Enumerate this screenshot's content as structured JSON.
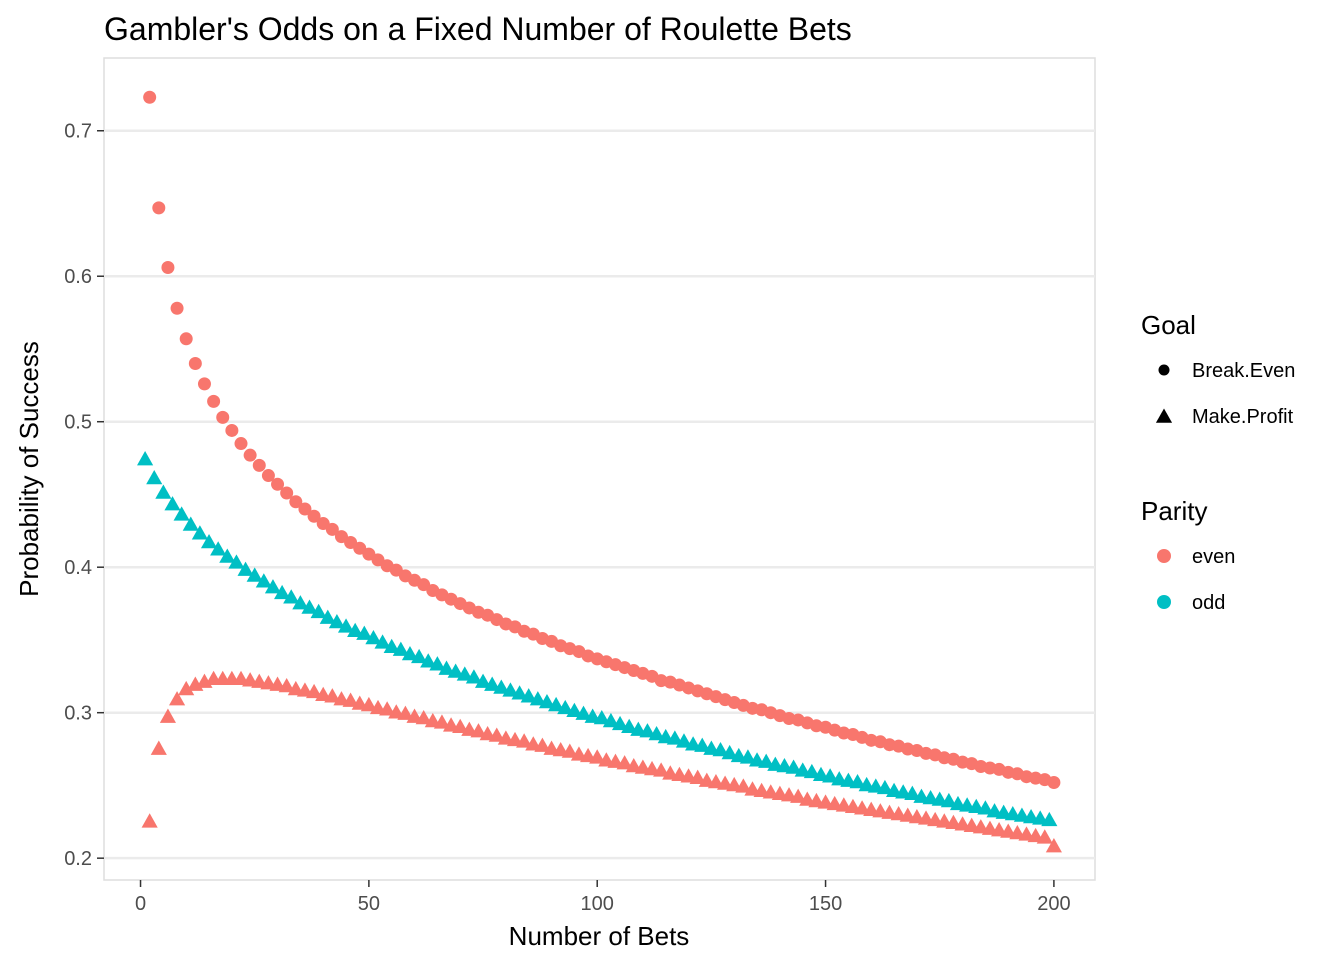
{
  "chart_data": {
    "type": "scatter",
    "title": "Gambler's Odds on a Fixed Number of Roulette Bets",
    "xlabel": "Number of Bets",
    "ylabel": "Probability of Success",
    "xlim": [
      -8,
      209
    ],
    "ylim": [
      0.185,
      0.75
    ],
    "x_ticks": [
      0,
      50,
      100,
      150,
      200
    ],
    "x_tick_labels": [
      "0",
      "50",
      "100",
      "150",
      "200"
    ],
    "y_ticks": [
      0.2,
      0.3,
      0.4,
      0.5,
      0.6,
      0.7
    ],
    "y_tick_labels": [
      "0.2",
      "0.3",
      "0.4",
      "0.5",
      "0.6",
      "0.7"
    ],
    "grid": true,
    "legend_position": "right",
    "legends": [
      {
        "title": "Goal",
        "entries": [
          {
            "label": "Break.Even",
            "shape": "circle",
            "color": "#000000"
          },
          {
            "label": "Make.Profit",
            "shape": "triangle",
            "color": "#000000"
          }
        ]
      },
      {
        "title": "Parity",
        "entries": [
          {
            "label": "even",
            "shape": "circle",
            "color": "#F8766D"
          },
          {
            "label": "odd",
            "shape": "circle",
            "color": "#00BFC4"
          }
        ]
      }
    ],
    "series": [
      {
        "goal": "Break.Even",
        "parity": "even",
        "shape": "circle",
        "color": "#F8766D",
        "x": [
          2,
          4,
          6,
          8,
          10,
          12,
          14,
          16,
          18,
          20,
          22,
          24,
          26,
          28,
          30,
          32,
          34,
          36,
          38,
          40,
          42,
          44,
          46,
          48,
          50,
          52,
          54,
          56,
          58,
          60,
          62,
          64,
          66,
          68,
          70,
          72,
          74,
          76,
          78,
          80,
          82,
          84,
          86,
          88,
          90,
          92,
          94,
          96,
          98,
          100,
          102,
          104,
          106,
          108,
          110,
          112,
          114,
          116,
          118,
          120,
          122,
          124,
          126,
          128,
          130,
          132,
          134,
          136,
          138,
          140,
          142,
          144,
          146,
          148,
          150,
          152,
          154,
          156,
          158,
          160,
          162,
          164,
          166,
          168,
          170,
          172,
          174,
          176,
          178,
          180,
          182,
          184,
          186,
          188,
          190,
          192,
          194,
          196,
          198,
          200
        ],
        "y": [
          0.723,
          0.647,
          0.606,
          0.578,
          0.557,
          0.54,
          0.526,
          0.514,
          0.503,
          0.494,
          0.485,
          0.477,
          0.47,
          0.463,
          0.457,
          0.451,
          0.445,
          0.44,
          0.435,
          0.43,
          0.426,
          0.421,
          0.417,
          0.413,
          0.409,
          0.405,
          0.401,
          0.398,
          0.394,
          0.391,
          0.388,
          0.384,
          0.381,
          0.378,
          0.375,
          0.372,
          0.369,
          0.367,
          0.364,
          0.361,
          0.359,
          0.356,
          0.354,
          0.351,
          0.349,
          0.346,
          0.344,
          0.342,
          0.339,
          0.337,
          0.335,
          0.333,
          0.331,
          0.329,
          0.327,
          0.325,
          0.322,
          0.321,
          0.319,
          0.317,
          0.315,
          0.313,
          0.311,
          0.309,
          0.307,
          0.305,
          0.303,
          0.302,
          0.3,
          0.298,
          0.296,
          0.295,
          0.293,
          0.291,
          0.29,
          0.288,
          0.286,
          0.285,
          0.283,
          0.281,
          0.28,
          0.278,
          0.277,
          0.275,
          0.274,
          0.272,
          0.271,
          0.269,
          0.268,
          0.266,
          0.265,
          0.263,
          0.262,
          0.261,
          0.259,
          0.258,
          0.256,
          0.255,
          0.254,
          0.252
        ]
      },
      {
        "goal": "Make.Profit",
        "parity": "odd",
        "shape": "triangle",
        "color": "#00BFC4",
        "x": [
          1,
          3,
          5,
          7,
          9,
          11,
          13,
          15,
          17,
          19,
          21,
          23,
          25,
          27,
          29,
          31,
          33,
          35,
          37,
          39,
          41,
          43,
          45,
          47,
          49,
          51,
          53,
          55,
          57,
          59,
          61,
          63,
          65,
          67,
          69,
          71,
          73,
          75,
          77,
          79,
          81,
          83,
          85,
          87,
          89,
          91,
          93,
          95,
          97,
          99,
          101,
          103,
          105,
          107,
          109,
          111,
          113,
          115,
          117,
          119,
          121,
          123,
          125,
          127,
          129,
          131,
          133,
          135,
          137,
          139,
          141,
          143,
          145,
          147,
          149,
          151,
          153,
          155,
          157,
          159,
          161,
          163,
          165,
          167,
          169,
          171,
          173,
          175,
          177,
          179,
          181,
          183,
          185,
          187,
          189,
          191,
          193,
          195,
          197,
          199
        ],
        "y": [
          0.474,
          0.461,
          0.451,
          0.443,
          0.436,
          0.429,
          0.423,
          0.417,
          0.412,
          0.407,
          0.403,
          0.398,
          0.394,
          0.39,
          0.386,
          0.382,
          0.379,
          0.375,
          0.372,
          0.369,
          0.365,
          0.362,
          0.359,
          0.356,
          0.354,
          0.351,
          0.348,
          0.345,
          0.343,
          0.34,
          0.338,
          0.335,
          0.333,
          0.33,
          0.328,
          0.326,
          0.324,
          0.321,
          0.319,
          0.317,
          0.315,
          0.313,
          0.311,
          0.309,
          0.307,
          0.305,
          0.303,
          0.301,
          0.299,
          0.297,
          0.296,
          0.294,
          0.292,
          0.29,
          0.288,
          0.287,
          0.285,
          0.283,
          0.282,
          0.28,
          0.278,
          0.277,
          0.275,
          0.274,
          0.272,
          0.27,
          0.269,
          0.267,
          0.266,
          0.264,
          0.263,
          0.262,
          0.26,
          0.259,
          0.257,
          0.256,
          0.254,
          0.253,
          0.252,
          0.25,
          0.249,
          0.248,
          0.246,
          0.245,
          0.244,
          0.242,
          0.241,
          0.24,
          0.239,
          0.237,
          0.236,
          0.235,
          0.234,
          0.232,
          0.231,
          0.23,
          0.229,
          0.228,
          0.227,
          0.226
        ]
      },
      {
        "goal": "Make.Profit",
        "parity": "even",
        "shape": "triangle",
        "color": "#F8766D",
        "x": [
          2,
          4,
          6,
          8,
          10,
          12,
          14,
          16,
          18,
          20,
          22,
          24,
          26,
          28,
          30,
          32,
          34,
          36,
          38,
          40,
          42,
          44,
          46,
          48,
          50,
          52,
          54,
          56,
          58,
          60,
          62,
          64,
          66,
          68,
          70,
          72,
          74,
          76,
          78,
          80,
          82,
          84,
          86,
          88,
          90,
          92,
          94,
          96,
          98,
          100,
          102,
          104,
          106,
          108,
          110,
          112,
          114,
          116,
          118,
          120,
          122,
          124,
          126,
          128,
          130,
          132,
          134,
          136,
          138,
          140,
          142,
          144,
          146,
          148,
          150,
          152,
          154,
          156,
          158,
          160,
          162,
          164,
          166,
          168,
          170,
          172,
          174,
          176,
          178,
          180,
          182,
          184,
          186,
          188,
          190,
          192,
          194,
          196,
          198,
          200
        ],
        "y": [
          0.225,
          0.275,
          0.297,
          0.309,
          0.316,
          0.319,
          0.321,
          0.323,
          0.323,
          0.323,
          0.323,
          0.322,
          0.321,
          0.32,
          0.319,
          0.318,
          0.316,
          0.315,
          0.314,
          0.312,
          0.311,
          0.309,
          0.308,
          0.306,
          0.305,
          0.303,
          0.302,
          0.3,
          0.299,
          0.297,
          0.296,
          0.294,
          0.293,
          0.291,
          0.29,
          0.288,
          0.287,
          0.285,
          0.284,
          0.282,
          0.281,
          0.28,
          0.278,
          0.277,
          0.275,
          0.274,
          0.273,
          0.271,
          0.27,
          0.269,
          0.267,
          0.266,
          0.265,
          0.263,
          0.262,
          0.261,
          0.26,
          0.258,
          0.257,
          0.256,
          0.255,
          0.253,
          0.252,
          0.251,
          0.25,
          0.249,
          0.247,
          0.246,
          0.245,
          0.244,
          0.243,
          0.242,
          0.24,
          0.239,
          0.238,
          0.237,
          0.236,
          0.235,
          0.234,
          0.233,
          0.232,
          0.231,
          0.23,
          0.229,
          0.228,
          0.227,
          0.226,
          0.225,
          0.224,
          0.223,
          0.222,
          0.221,
          0.22,
          0.219,
          0.218,
          0.217,
          0.216,
          0.215,
          0.214,
          0.208
        ]
      }
    ]
  }
}
